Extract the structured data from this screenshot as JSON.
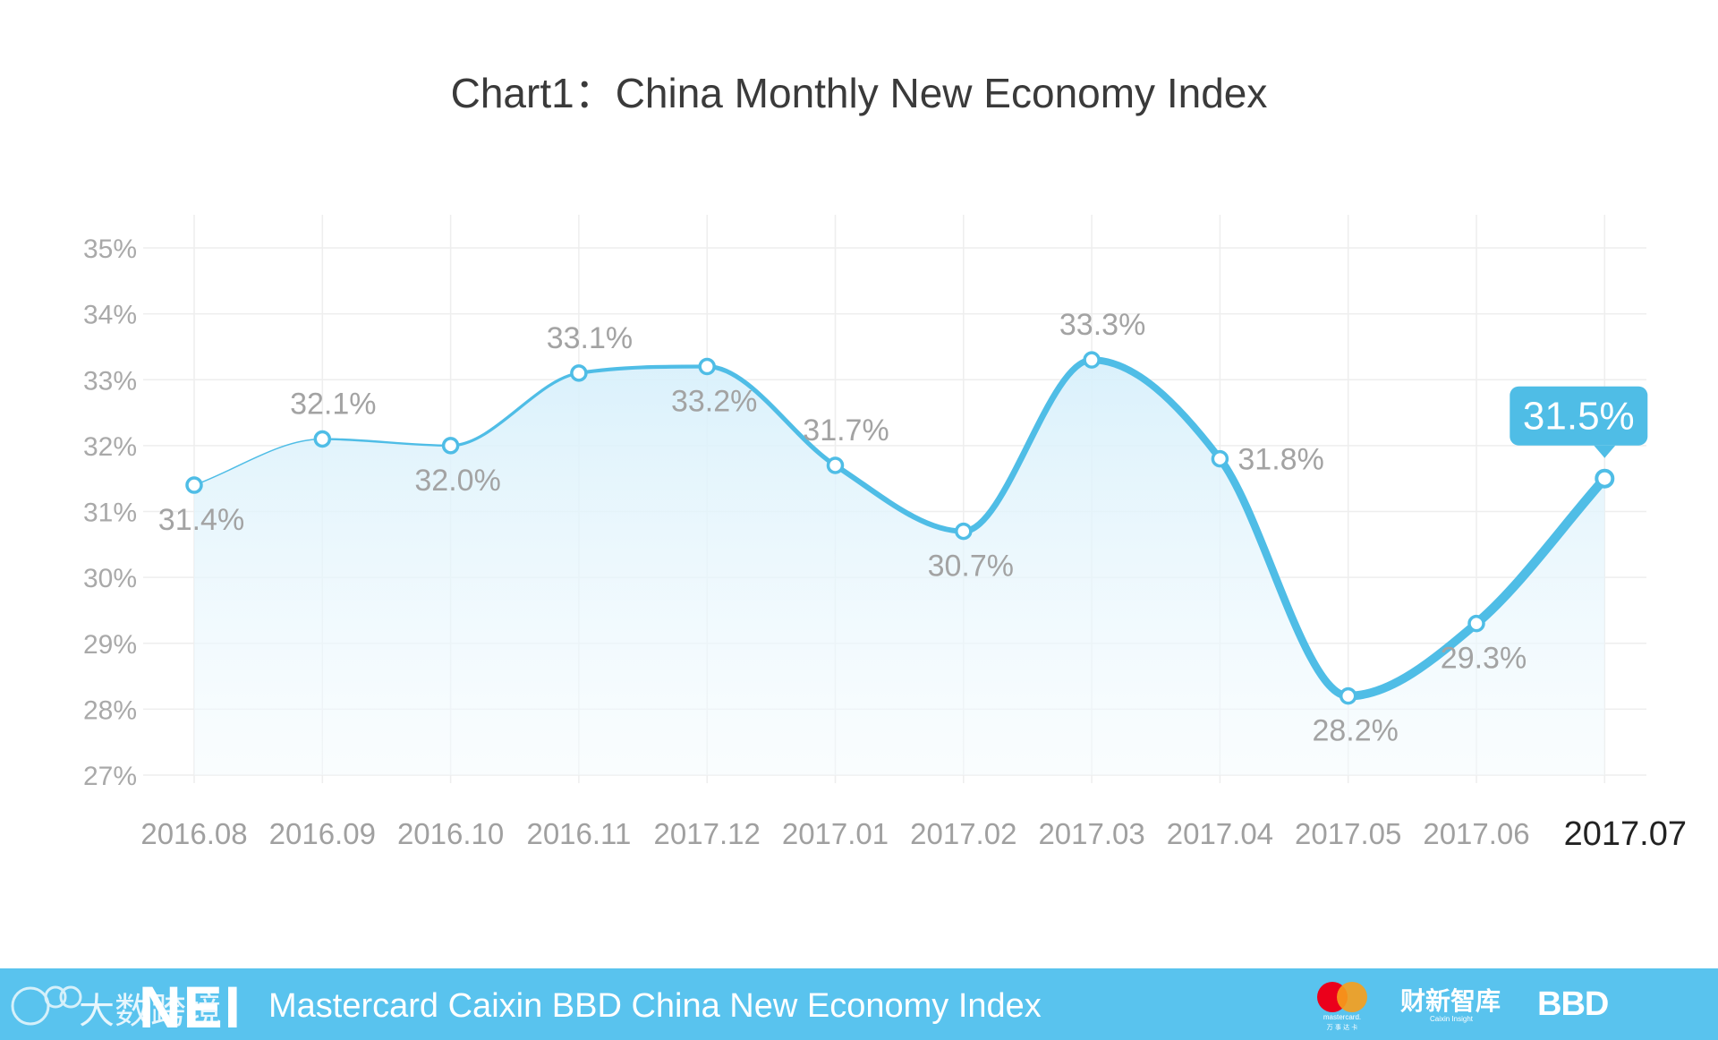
{
  "chart_data": {
    "type": "line",
    "title": "Chart1：China Monthly New Economy Index",
    "categories": [
      "2016.08",
      "2016.09",
      "2016.10",
      "2016.11",
      "2017.12",
      "2017.01",
      "2017.02",
      "2017.03",
      "2017.04",
      "2017.05",
      "2017.06",
      "2017.07"
    ],
    "values": [
      31.4,
      32.1,
      32.0,
      33.1,
      33.2,
      31.7,
      30.7,
      33.3,
      31.8,
      28.2,
      29.3,
      31.5
    ],
    "labels": [
      "31.4%",
      "32.1%",
      "32.0%",
      "33.1%",
      "33.2%",
      "31.7%",
      "30.7%",
      "33.3%",
      "31.8%",
      "28.2%",
      "29.3%",
      "31.5%"
    ],
    "label_positions": [
      "below",
      "above",
      "below",
      "above",
      "below",
      "above",
      "below",
      "above",
      "right",
      "below",
      "below",
      "callout"
    ],
    "ylim": [
      27,
      35
    ],
    "yticks": [
      "27%",
      "28%",
      "29%",
      "30%",
      "31%",
      "32%",
      "33%",
      "34%",
      "35%"
    ],
    "xlabel": "",
    "ylabel": "",
    "grid": true,
    "highlight_index": 11,
    "line_color": "#4fbde6",
    "fill_color": "#dff3fb"
  },
  "footer": {
    "background": "#59c3ee",
    "title": "Mastercard Caixin BBD China New Economy Index",
    "nei_logo": "NEI",
    "watermark": "大数跨境",
    "watermark_icon": "watermark-logo-icon",
    "logos": {
      "mastercard": "mastercard.",
      "mastercard_sub": "万 事 达 卡",
      "caixin": "财新智库",
      "caixin_sub": "Caixin Insight",
      "bbd": "BBD"
    }
  }
}
